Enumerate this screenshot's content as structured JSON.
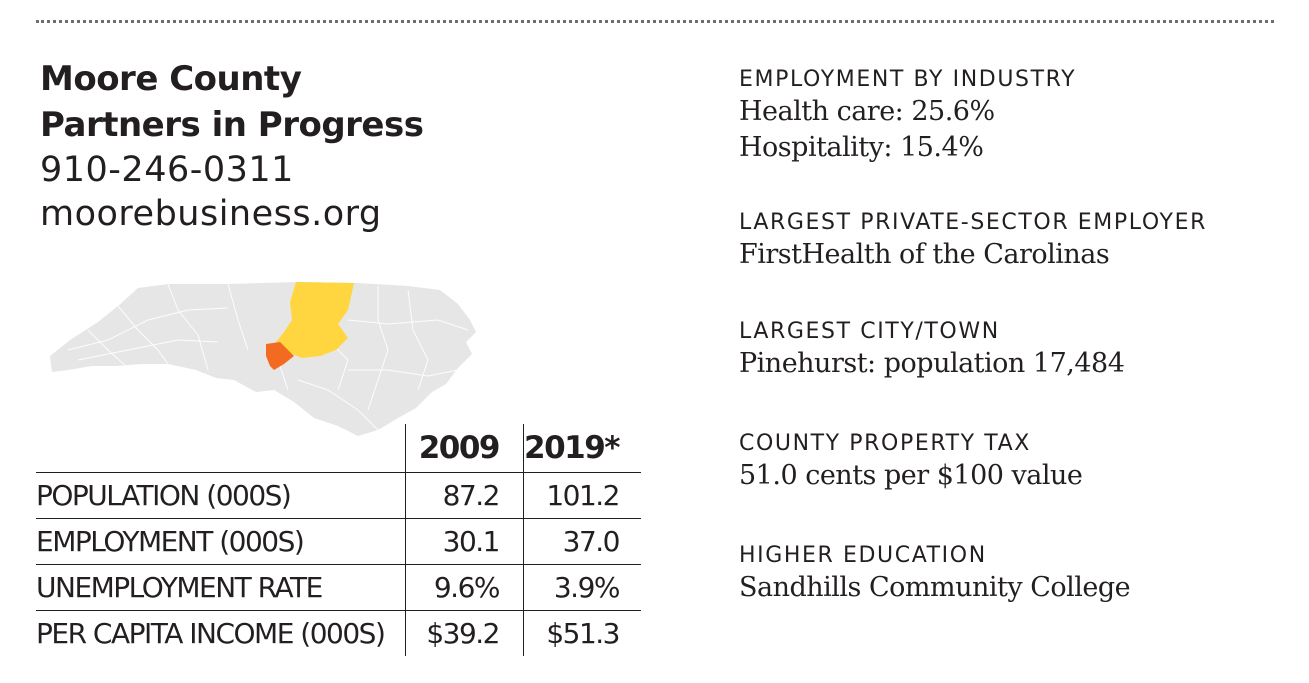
{
  "organization": {
    "name_line1": "Moore County",
    "name_line2": "Partners in Progress",
    "phone": "910-246-0311",
    "website": "moorebusiness.org"
  },
  "map": {
    "region_color": "#e6e6e6",
    "neighbor_color": "#ffd540",
    "highlight_color": "#f26b21"
  },
  "stats_table": {
    "columns": [
      "2009",
      "2019*"
    ],
    "rows": [
      {
        "label": "POPULATION (000S)",
        "v2009": "87.2",
        "v2019": "101.2"
      },
      {
        "label": "EMPLOYMENT (000S)",
        "v2009": "30.1",
        "v2019": "37.0"
      },
      {
        "label": "UNEMPLOYMENT RATE",
        "v2009": "9.6%",
        "v2019": "3.9%"
      },
      {
        "label": "PER CAPITA INCOME (000S)",
        "v2009": "$39.2",
        "v2019": "$51.3"
      }
    ]
  },
  "facts": [
    {
      "heading": "EMPLOYMENT BY INDUSTRY",
      "lines": [
        "Health care: 25.6%",
        "Hospitality: 15.4%"
      ]
    },
    {
      "heading": "LARGEST PRIVATE-SECTOR EMPLOYER",
      "lines": [
        "FirstHealth of the Carolinas"
      ]
    },
    {
      "heading": "LARGEST CITY/TOWN",
      "lines": [
        "Pinehurst: population 17,484"
      ]
    },
    {
      "heading": "COUNTY PROPERTY TAX",
      "lines": [
        "51.0 cents per $100 value"
      ]
    },
    {
      "heading": "HIGHER EDUCATION",
      "lines": [
        "Sandhills Community College"
      ]
    }
  ]
}
